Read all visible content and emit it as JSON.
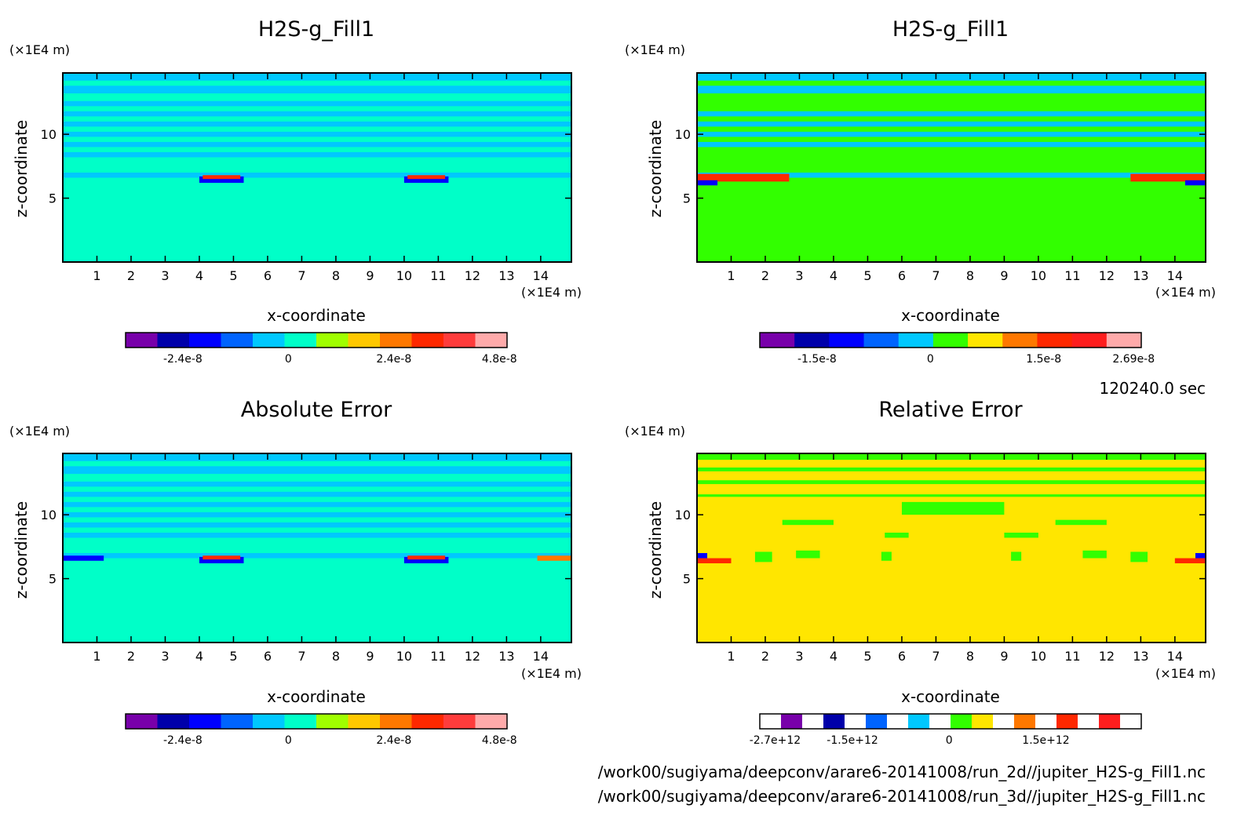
{
  "time_label": "120240.0 sec",
  "files": [
    "/work00/sugiyama/deepconv/arare6-20141008/run_2d//jupiter_H2S-g_Fill1.nc",
    "/work00/sugiyama/deepconv/arare6-20141008/run_3d//jupiter_H2S-g_Fill1.nc"
  ],
  "chart_data": [
    {
      "type": "heatmap",
      "title": "H2S-g_Fill1",
      "xlabel": "x-coordinate",
      "ylabel": "z-coordinate",
      "x_unit": "(×1E4 m)",
      "z_unit": "(×1E4 m)",
      "xlim": [
        0,
        14.9
      ],
      "zlim": [
        0,
        14.8
      ],
      "x_ticks": [
        "1",
        "2",
        "3",
        "4",
        "5",
        "6",
        "7",
        "8",
        "9",
        "10",
        "11",
        "12",
        "13",
        "14"
      ],
      "z_ticks": [
        "5",
        "10"
      ],
      "background_color": "#00ffc8",
      "bands": [
        {
          "z": [
            14.2,
            14.8
          ],
          "color": "#00c8ff"
        },
        {
          "z": [
            13.2,
            13.8
          ],
          "color": "#00c8ff"
        },
        {
          "z": [
            12.2,
            12.6
          ],
          "color": "#00c8ff"
        },
        {
          "z": [
            11.4,
            11.8
          ],
          "color": "#00c8ff"
        },
        {
          "z": [
            10.6,
            11.0
          ],
          "color": "#00c8ff"
        },
        {
          "z": [
            9.8,
            10.2
          ],
          "color": "#00c8ff"
        },
        {
          "z": [
            9.0,
            9.4
          ],
          "color": "#00c8ff"
        },
        {
          "z": [
            8.2,
            8.6
          ],
          "color": "#00c8ff"
        },
        {
          "z": [
            6.6,
            7.0
          ],
          "color": "#00c8ff"
        }
      ],
      "spots": [
        {
          "x": [
            4.0,
            5.3
          ],
          "z": [
            6.2,
            6.7
          ],
          "color": "#0000ff"
        },
        {
          "x": [
            10.0,
            11.3
          ],
          "z": [
            6.2,
            6.7
          ],
          "color": "#0000ff"
        },
        {
          "x": [
            4.1,
            5.2
          ],
          "z": [
            6.5,
            6.8
          ],
          "color": "#ff2800"
        },
        {
          "x": [
            10.1,
            11.2
          ],
          "z": [
            6.5,
            6.8
          ],
          "color": "#ff2800"
        }
      ],
      "colorbar": {
        "colors": [
          "#7800aa",
          "#0000aa",
          "#0000ff",
          "#0064ff",
          "#00c8ff",
          "#00ffc8",
          "#a0ff00",
          "#ffc800",
          "#ff7800",
          "#ff2800",
          "#ff3c3c",
          "#ffaaaa"
        ],
        "tick_labels": [
          "-2.4e-8",
          "0",
          "2.4e-8",
          "4.8e-8"
        ],
        "tick_values": [
          -2.4e-08,
          0,
          2.4e-08,
          4.8e-08
        ]
      }
    },
    {
      "type": "heatmap",
      "title": "H2S-g_Fill1",
      "xlabel": "x-coordinate",
      "ylabel": "z-coordinate",
      "x_unit": "(×1E4 m)",
      "z_unit": "(×1E4 m)",
      "xlim": [
        0,
        14.9
      ],
      "zlim": [
        0,
        14.8
      ],
      "x_ticks": [
        "1",
        "2",
        "3",
        "4",
        "5",
        "6",
        "7",
        "8",
        "9",
        "10",
        "11",
        "12",
        "13",
        "14"
      ],
      "z_ticks": [
        "5",
        "10"
      ],
      "background_color": "#32ff00",
      "bands": [
        {
          "z": [
            14.2,
            14.8
          ],
          "color": "#00c8ff"
        },
        {
          "z": [
            13.2,
            13.8
          ],
          "color": "#00c8ff"
        },
        {
          "z": [
            11.4,
            11.8
          ],
          "color": "#00c8ff"
        },
        {
          "z": [
            10.6,
            11.0
          ],
          "color": "#00c8ff"
        },
        {
          "z": [
            9.8,
            10.2
          ],
          "color": "#00c8ff"
        },
        {
          "z": [
            9.0,
            9.4
          ],
          "color": "#00c8ff"
        },
        {
          "z": [
            6.6,
            7.0
          ],
          "color": "#00c8ff"
        }
      ],
      "spots": [
        {
          "x": [
            0.0,
            2.7
          ],
          "z": [
            6.3,
            6.9
          ],
          "color": "#ff2800"
        },
        {
          "x": [
            12.7,
            14.9
          ],
          "z": [
            6.3,
            6.9
          ],
          "color": "#ff2800"
        },
        {
          "x": [
            0.0,
            0.6
          ],
          "z": [
            6.0,
            6.4
          ],
          "color": "#0000ff"
        },
        {
          "x": [
            14.3,
            14.9
          ],
          "z": [
            6.0,
            6.4
          ],
          "color": "#0000ff"
        }
      ],
      "colorbar": {
        "colors": [
          "#7800aa",
          "#0000aa",
          "#0000ff",
          "#0064ff",
          "#00c8ff",
          "#32ff00",
          "#ffe600",
          "#ff7800",
          "#ff2800",
          "#ff1e1e",
          "#ffaaaa"
        ],
        "tick_labels": [
          "-1.5e-8",
          "0",
          "1.5e-8",
          "2.69e-8"
        ],
        "tick_values": [
          -1.5e-08,
          0,
          1.5e-08,
          2.69e-08
        ]
      }
    },
    {
      "type": "heatmap",
      "title": "Absolute Error",
      "xlabel": "x-coordinate",
      "ylabel": "z-coordinate",
      "x_unit": "(×1E4 m)",
      "z_unit": "(×1E4 m)",
      "xlim": [
        0,
        14.9
      ],
      "zlim": [
        0,
        14.8
      ],
      "x_ticks": [
        "1",
        "2",
        "3",
        "4",
        "5",
        "6",
        "7",
        "8",
        "9",
        "10",
        "11",
        "12",
        "13",
        "14"
      ],
      "z_ticks": [
        "5",
        "10"
      ],
      "background_color": "#00ffc8",
      "bands": [
        {
          "z": [
            14.2,
            14.8
          ],
          "color": "#00c8ff"
        },
        {
          "z": [
            13.2,
            13.8
          ],
          "color": "#00c8ff"
        },
        {
          "z": [
            12.2,
            12.6
          ],
          "color": "#00c8ff"
        },
        {
          "z": [
            11.4,
            11.8
          ],
          "color": "#00c8ff"
        },
        {
          "z": [
            10.6,
            11.0
          ],
          "color": "#00c8ff"
        },
        {
          "z": [
            9.8,
            10.2
          ],
          "color": "#00c8ff"
        },
        {
          "z": [
            9.0,
            9.4
          ],
          "color": "#00c8ff"
        },
        {
          "z": [
            8.2,
            8.6
          ],
          "color": "#00c8ff"
        },
        {
          "z": [
            6.6,
            7.0
          ],
          "color": "#00c8ff"
        }
      ],
      "spots": [
        {
          "x": [
            0.0,
            1.2
          ],
          "z": [
            6.4,
            6.8
          ],
          "color": "#0000ff"
        },
        {
          "x": [
            13.9,
            14.9
          ],
          "z": [
            6.4,
            6.8
          ],
          "color": "#ff7800"
        },
        {
          "x": [
            4.0,
            5.3
          ],
          "z": [
            6.2,
            6.7
          ],
          "color": "#0000ff"
        },
        {
          "x": [
            10.0,
            11.3
          ],
          "z": [
            6.2,
            6.7
          ],
          "color": "#0000ff"
        },
        {
          "x": [
            4.1,
            5.2
          ],
          "z": [
            6.5,
            6.8
          ],
          "color": "#ff2800"
        },
        {
          "x": [
            10.1,
            11.2
          ],
          "z": [
            6.5,
            6.8
          ],
          "color": "#ff2800"
        }
      ],
      "colorbar": {
        "colors": [
          "#7800aa",
          "#0000aa",
          "#0000ff",
          "#0064ff",
          "#00c8ff",
          "#00ffc8",
          "#a0ff00",
          "#ffc800",
          "#ff7800",
          "#ff2800",
          "#ff3c3c",
          "#ffaaaa"
        ],
        "tick_labels": [
          "-2.4e-8",
          "0",
          "2.4e-8",
          "4.8e-8"
        ],
        "tick_values": [
          -2.4e-08,
          0,
          2.4e-08,
          4.8e-08
        ]
      }
    },
    {
      "type": "heatmap",
      "title": "Relative Error",
      "xlabel": "x-coordinate",
      "ylabel": "z-coordinate",
      "x_unit": "(×1E4 m)",
      "z_unit": "(×1E4 m)",
      "xlim": [
        0,
        14.9
      ],
      "zlim": [
        0,
        14.8
      ],
      "x_ticks": [
        "1",
        "2",
        "3",
        "4",
        "5",
        "6",
        "7",
        "8",
        "9",
        "10",
        "11",
        "12",
        "13",
        "14"
      ],
      "z_ticks": [
        "5",
        "10"
      ],
      "background_color": "#ffe600",
      "bands": [
        {
          "z": [
            14.3,
            14.8
          ],
          "color": "#32ff00"
        },
        {
          "z": [
            13.4,
            13.7
          ],
          "color": "#32ff00"
        },
        {
          "z": [
            12.4,
            12.7
          ],
          "color": "#32ff00"
        },
        {
          "z": [
            11.4,
            11.6
          ],
          "color": "#32ff00"
        }
      ],
      "spots": [
        {
          "x": [
            6.0,
            9.0
          ],
          "z": [
            10.0,
            11.0
          ],
          "color": "#32ff00"
        },
        {
          "x": [
            2.5,
            4.0
          ],
          "z": [
            9.2,
            9.6
          ],
          "color": "#32ff00"
        },
        {
          "x": [
            10.5,
            12.0
          ],
          "z": [
            9.2,
            9.6
          ],
          "color": "#32ff00"
        },
        {
          "x": [
            5.5,
            6.2
          ],
          "z": [
            8.2,
            8.6
          ],
          "color": "#32ff00"
        },
        {
          "x": [
            9.0,
            10.0
          ],
          "z": [
            8.2,
            8.6
          ],
          "color": "#32ff00"
        },
        {
          "x": [
            1.7,
            2.2
          ],
          "z": [
            6.3,
            7.1
          ],
          "color": "#32ff00"
        },
        {
          "x": [
            2.9,
            3.6
          ],
          "z": [
            6.6,
            7.2
          ],
          "color": "#32ff00"
        },
        {
          "x": [
            5.4,
            5.7
          ],
          "z": [
            6.4,
            7.1
          ],
          "color": "#32ff00"
        },
        {
          "x": [
            9.2,
            9.5
          ],
          "z": [
            6.4,
            7.1
          ],
          "color": "#32ff00"
        },
        {
          "x": [
            11.3,
            12.0
          ],
          "z": [
            6.6,
            7.2
          ],
          "color": "#32ff00"
        },
        {
          "x": [
            12.7,
            13.2
          ],
          "z": [
            6.3,
            7.1
          ],
          "color": "#32ff00"
        },
        {
          "x": [
            0.0,
            1.0
          ],
          "z": [
            6.2,
            6.6
          ],
          "color": "#ff2800"
        },
        {
          "x": [
            14.0,
            14.9
          ],
          "z": [
            6.2,
            6.6
          ],
          "color": "#ff2800"
        },
        {
          "x": [
            0.0,
            0.3
          ],
          "z": [
            6.6,
            7.0
          ],
          "color": "#0000ff"
        },
        {
          "x": [
            14.6,
            14.9
          ],
          "z": [
            6.6,
            7.0
          ],
          "color": "#0000ff"
        }
      ],
      "colorbar": {
        "colors": [
          "#ffffff",
          "#7800aa",
          "#ffffff",
          "#0000aa",
          "#ffffff",
          "#0064ff",
          "#ffffff",
          "#00c8ff",
          "#ffffff",
          "#32ff00",
          "#ffe600",
          "#ffffff",
          "#ff7800",
          "#ffffff",
          "#ff2800",
          "#ffffff",
          "#ff1e1e",
          "#ffffff"
        ],
        "tick_labels": [
          "-2.7e+12",
          "-1.5e+12",
          "0",
          "1.5e+12"
        ],
        "tick_values": [
          -2700000000000.0,
          -1500000000000.0,
          0,
          1500000000000.0
        ]
      }
    }
  ]
}
